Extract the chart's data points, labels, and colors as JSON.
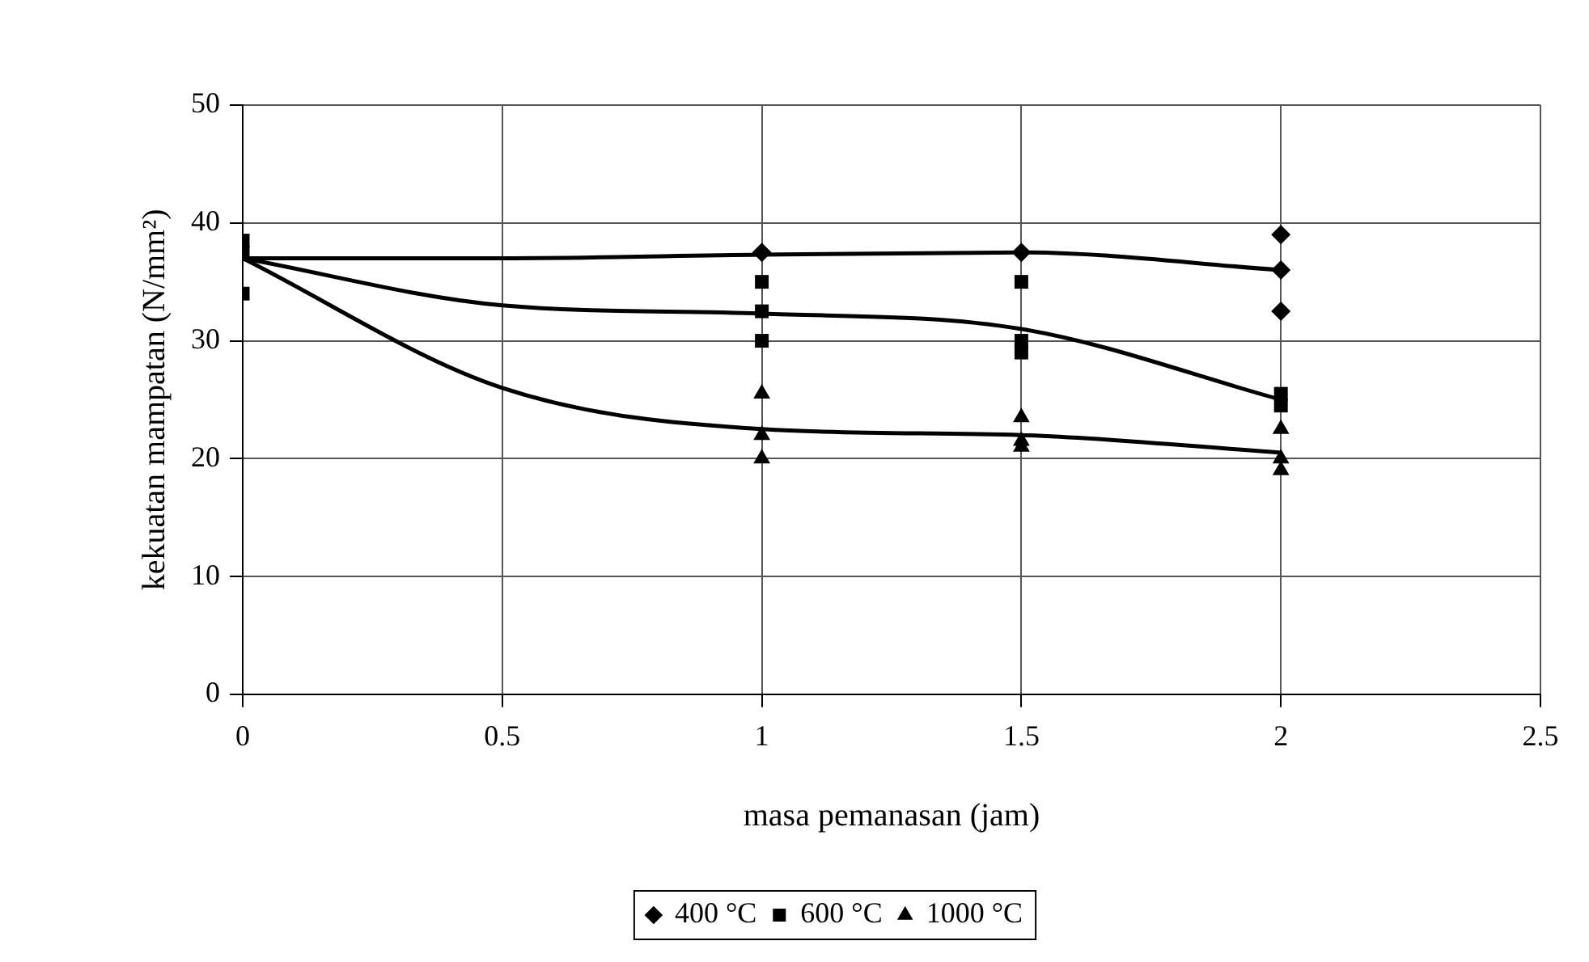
{
  "chart_data": {
    "type": "scatter",
    "xlabel": "masa pemanasan (jam)",
    "ylabel": "kekuatan mampatan (N/mm²)",
    "xlim": [
      0,
      2.5
    ],
    "xticks": [
      0,
      0.5,
      1,
      1.5,
      2,
      2.5
    ],
    "ylim": [
      0,
      50
    ],
    "yticks": [
      0,
      10,
      20,
      30,
      40,
      50
    ],
    "grid": true,
    "legend": "bottom",
    "series": [
      {
        "name": "400 °C",
        "color": "#000000",
        "marker": "diamond",
        "x": [
          1,
          1.5,
          2,
          2,
          2
        ],
        "values": [
          37.5,
          37.5,
          39,
          36,
          32.5
        ]
      },
      {
        "name": "600 °C",
        "color": "#000000",
        "marker": "square",
        "x": [
          0,
          0,
          0,
          1,
          1,
          1,
          1.5,
          1.5,
          1.5,
          2,
          2
        ],
        "values": [
          38.5,
          37.5,
          34,
          35,
          32.5,
          30,
          35,
          30,
          29,
          25.5,
          24.5
        ]
      },
      {
        "name": "1000 °C",
        "color": "#000000",
        "marker": "triangle",
        "x": [
          1,
          1,
          1,
          1.5,
          1.5,
          1.5,
          2,
          2,
          2
        ],
        "values": [
          25.5,
          22,
          20,
          23.5,
          21.5,
          21,
          22.5,
          20,
          19
        ]
      },
      {
        "type": "line",
        "color": "#000000",
        "marker": "none",
        "x": [
          0,
          0.5,
          1,
          1.5,
          2
        ],
        "values": [
          37,
          37,
          37.3,
          37.5,
          36
        ]
      },
      {
        "type": "line",
        "color": "#000000",
        "marker": "none",
        "x": [
          0,
          0.5,
          1,
          1.5,
          2
        ],
        "values": [
          37,
          33,
          32.3,
          31,
          25
        ]
      },
      {
        "type": "line",
        "color": "#000000",
        "marker": "none",
        "x": [
          0,
          0.5,
          1,
          1.5,
          2
        ],
        "values": [
          37,
          26,
          22.5,
          22,
          20.5
        ]
      }
    ]
  }
}
